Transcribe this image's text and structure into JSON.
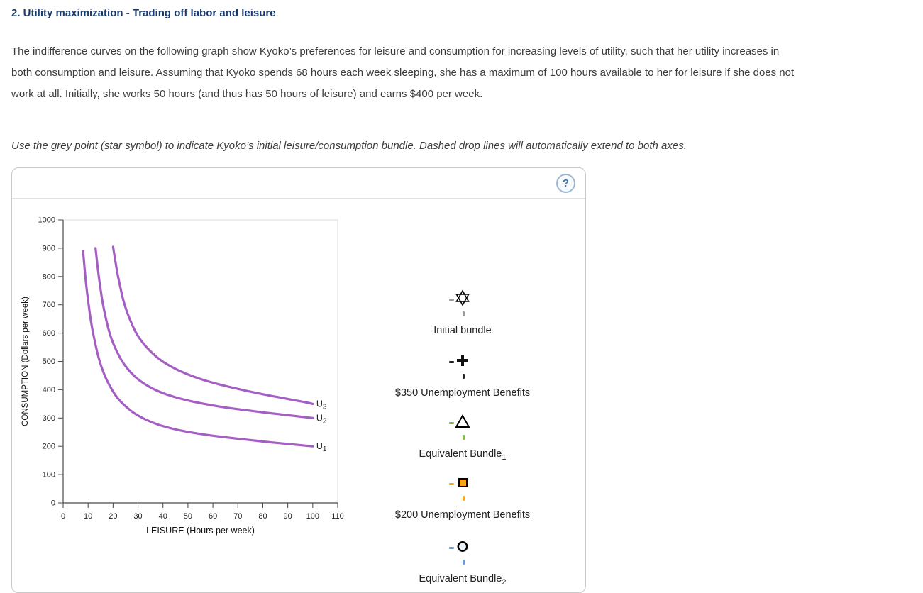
{
  "page": {
    "heading": "2. Utility maximization - Trading off labor and leisure",
    "paragraph": "The indifference curves on the following graph show Kyoko’s preferences for leisure and consumption for increasing levels of utility, such that her utility increases in both consumption and leisure. Assuming that Kyoko spends 68 hours each week sleeping, she has a maximum of 100 hours available to her for leisure if she does not work at all. Initially, she works 50 hours (and thus has 50 hours of leisure) and earns $400 per week.",
    "instruction": "Use the grey point (star symbol) to indicate Kyoko’s initial leisure/consumption bundle. Dashed drop lines will automatically extend to both axes."
  },
  "panel": {
    "help_label": "?"
  },
  "chart_data": {
    "type": "line",
    "title": "",
    "xlabel": "LEISURE (Hours per week)",
    "ylabel": "CONSUMPTION (Dollars per week)",
    "xlim": [
      0,
      110
    ],
    "ylim": [
      0,
      1000
    ],
    "xticks": [
      0,
      10,
      20,
      30,
      40,
      50,
      60,
      70,
      80,
      90,
      100,
      110
    ],
    "yticks": [
      0,
      100,
      200,
      300,
      400,
      500,
      600,
      700,
      800,
      900,
      1000
    ],
    "grid": false,
    "legend": "curve-end labels",
    "series": [
      {
        "name": "U1",
        "label_text": "U",
        "label_sub": "1",
        "color": "#A55EC4",
        "points": [
          [
            8,
            890
          ],
          [
            9,
            790
          ],
          [
            10,
            715
          ],
          [
            11,
            650
          ],
          [
            12,
            600
          ],
          [
            14,
            520
          ],
          [
            16,
            465
          ],
          [
            18,
            425
          ],
          [
            21,
            380
          ],
          [
            24,
            350
          ],
          [
            28,
            320
          ],
          [
            33,
            295
          ],
          [
            38,
            277
          ],
          [
            44,
            262
          ],
          [
            50,
            251
          ],
          [
            57,
            241
          ],
          [
            64,
            233
          ],
          [
            72,
            225
          ],
          [
            80,
            217
          ],
          [
            88,
            210
          ],
          [
            94,
            205
          ],
          [
            100,
            200
          ]
        ]
      },
      {
        "name": "U2",
        "label_text": "U",
        "label_sub": "2",
        "color": "#A55EC4",
        "points": [
          [
            13,
            900
          ],
          [
            14,
            820
          ],
          [
            15,
            755
          ],
          [
            16,
            700
          ],
          [
            18,
            620
          ],
          [
            20,
            565
          ],
          [
            23,
            510
          ],
          [
            26,
            472
          ],
          [
            30,
            437
          ],
          [
            35,
            408
          ],
          [
            40,
            388
          ],
          [
            46,
            371
          ],
          [
            52,
            358
          ],
          [
            59,
            346
          ],
          [
            66,
            336
          ],
          [
            73,
            328
          ],
          [
            80,
            320
          ],
          [
            87,
            313
          ],
          [
            94,
            306
          ],
          [
            100,
            300
          ]
        ]
      },
      {
        "name": "U3",
        "label_text": "U",
        "label_sub": "3",
        "color": "#A55EC4",
        "points": [
          [
            20,
            905
          ],
          [
            21,
            850
          ],
          [
            22,
            800
          ],
          [
            24,
            720
          ],
          [
            26,
            665
          ],
          [
            29,
            605
          ],
          [
            32,
            565
          ],
          [
            36,
            527
          ],
          [
            40,
            499
          ],
          [
            45,
            474
          ],
          [
            50,
            454
          ],
          [
            56,
            435
          ],
          [
            62,
            420
          ],
          [
            68,
            407
          ],
          [
            74,
            395
          ],
          [
            80,
            384
          ],
          [
            86,
            374
          ],
          [
            92,
            364
          ],
          [
            97,
            356
          ],
          [
            100,
            350
          ]
        ]
      }
    ]
  },
  "palette": {
    "items": [
      {
        "label": "Initial bundle",
        "sub": "",
        "symbol": "star",
        "color": "#9B9B9B"
      },
      {
        "label": "$350 Unemployment Benefits",
        "sub": "",
        "symbol": "plus",
        "color": "#222222"
      },
      {
        "label": "Equivalent Bundle",
        "sub": "1",
        "symbol": "triangle",
        "color": "#82BB47"
      },
      {
        "label": "$200 Unemployment Benefits",
        "sub": "",
        "symbol": "square",
        "color": "#F9A51A"
      },
      {
        "label": "Equivalent Bundle",
        "sub": "2",
        "symbol": "circle",
        "color": "#6E9FD4"
      }
    ]
  }
}
